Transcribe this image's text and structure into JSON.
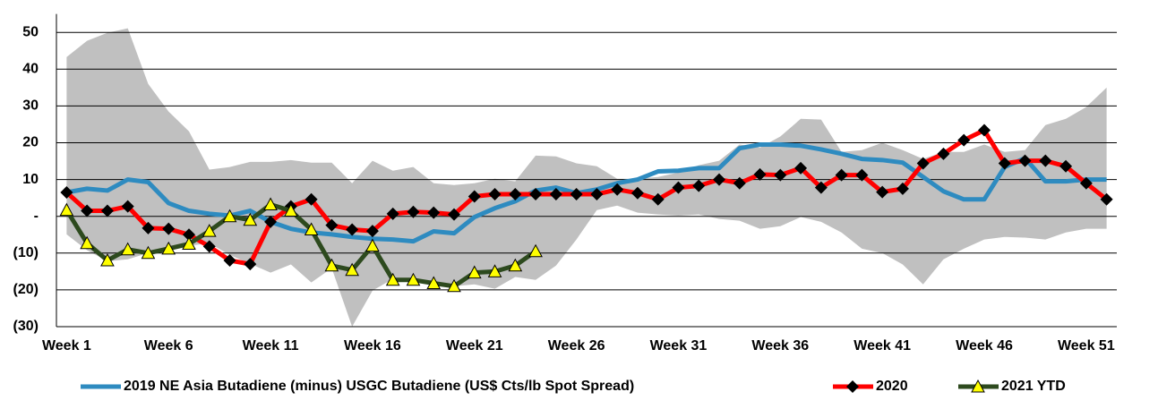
{
  "chart_data": {
    "type": "line",
    "categories": [
      "Week 1",
      null,
      null,
      null,
      null,
      "Week 6",
      null,
      null,
      null,
      null,
      "Week 11",
      null,
      null,
      null,
      null,
      "Week 16",
      null,
      null,
      null,
      null,
      "Week 21",
      null,
      null,
      null,
      null,
      "Week 26",
      null,
      null,
      null,
      null,
      "Week 31",
      null,
      null,
      null,
      null,
      "Week 36",
      null,
      null,
      null,
      null,
      "Week 41",
      null,
      null,
      null,
      null,
      "Week 46",
      null,
      null,
      null,
      null,
      "Week 51",
      null
    ],
    "range": {
      "color": "#c0c0c0",
      "high": [
        43.3,
        47.7,
        49.9,
        51.1,
        36,
        28.5,
        23.1,
        12.7,
        13.4,
        14.8,
        14.8,
        15.3,
        14.6,
        14.6,
        9,
        15.1,
        12.4,
        13.4,
        9,
        8.5,
        9,
        10.2,
        9.5,
        16.5,
        16.3,
        14.4,
        13.6,
        10.2,
        10.2,
        10.7,
        11.9,
        13.9,
        15.1,
        19.5,
        18.7,
        21.7,
        26.5,
        26.3,
        17.5,
        18,
        20,
        18,
        15.6,
        17.5,
        17.5,
        19.5,
        17.5,
        18,
        24.8,
        26.5,
        29.7,
        35
      ],
      "low": [
        -4.9,
        -9.2,
        -12.2,
        -11.7,
        -10,
        -8.8,
        -8,
        -7.3,
        -10.5,
        -12.9,
        -15.3,
        -13.1,
        -18,
        -14.1,
        -30,
        -20.2,
        -17,
        -17.8,
        -18.5,
        -19,
        -18.5,
        -19.7,
        -16.5,
        -17.3,
        -13.4,
        -6.3,
        1.7,
        2.9,
        1,
        0.5,
        0.2,
        0.5,
        -0.7,
        -1.2,
        -3.4,
        -2.7,
        -0.2,
        -1.5,
        -4.4,
        -8.8,
        -10,
        -13.1,
        -18.5,
        -11.7,
        -8.8,
        -6.3,
        -5.6,
        -5.8,
        -6.3,
        -4.4,
        -3.4,
        -3.4
      ]
    },
    "series": [
      {
        "name": "2019 NE Asia Butadiene (minus) USGC Butadiene (US$ Cts/lb Spot Spread)",
        "color": "#2e8bc0",
        "marker": "none",
        "values": [
          6.5,
          7.5,
          7,
          10,
          9.3,
          3.6,
          1.5,
          0.7,
          0.2,
          1.5,
          -1.5,
          -3.4,
          -4.4,
          -4.9,
          -5.6,
          -6.1,
          -6.3,
          -6.8,
          -4.1,
          -4.6,
          -0.2,
          2.2,
          4.1,
          7,
          7.8,
          6.3,
          7.3,
          9,
          10,
          12.2,
          12.4,
          13.1,
          13.1,
          18.5,
          19.5,
          19.5,
          19.2,
          18.2,
          17,
          15.6,
          15.3,
          14.6,
          10.7,
          6.8,
          4.6,
          4.6,
          13.4,
          15.8,
          9.5,
          9.5,
          10,
          10
        ]
      },
      {
        "name": "2020",
        "color": "#ff0000",
        "marker": "diamond",
        "values": [
          6.5,
          1.5,
          1.5,
          2.7,
          -3.2,
          -3.4,
          -5,
          -8.2,
          -12,
          -13,
          -1.5,
          2.7,
          4.6,
          -2.4,
          -3.6,
          -4,
          0.7,
          1.2,
          1,
          0.5,
          5.4,
          6,
          6,
          6,
          6,
          6,
          6,
          7.3,
          6.3,
          4.6,
          7.8,
          8.3,
          10,
          9,
          11.4,
          11.2,
          13.1,
          7.8,
          11.2,
          11.2,
          6.6,
          7.5,
          14.4,
          17,
          20.7,
          23.4,
          14.4,
          15.1,
          15.1,
          13.6,
          9,
          4.6
        ]
      },
      {
        "name": "2021 YTD",
        "color": "#2d4a1e",
        "marker": "triangle",
        "values": [
          1.7,
          -7.3,
          -12,
          -9,
          -10,
          -8.8,
          -7.5,
          -4,
          0,
          -1,
          3.2,
          1.5,
          -3.6,
          -13.4,
          -14.6,
          -8,
          -17.3,
          -17.3,
          -18.2,
          -19,
          -15.3,
          -15,
          -13.4,
          -9.5,
          null,
          null,
          null,
          null,
          null,
          null,
          null,
          null,
          null,
          null,
          null,
          null,
          null,
          null,
          null,
          null,
          null,
          null,
          null,
          null,
          null,
          null,
          null,
          null,
          null,
          null,
          null,
          null
        ]
      }
    ],
    "ylim": [
      -30,
      55
    ],
    "yticks": [
      {
        "value": -30,
        "label": "(30)"
      },
      {
        "value": -20,
        "label": "(20)"
      },
      {
        "value": -10,
        "label": "(10)"
      },
      {
        "value": 0,
        "label": "-"
      },
      10,
      20,
      30,
      40,
      50
    ],
    "grid": true,
    "legend": "bottom"
  }
}
